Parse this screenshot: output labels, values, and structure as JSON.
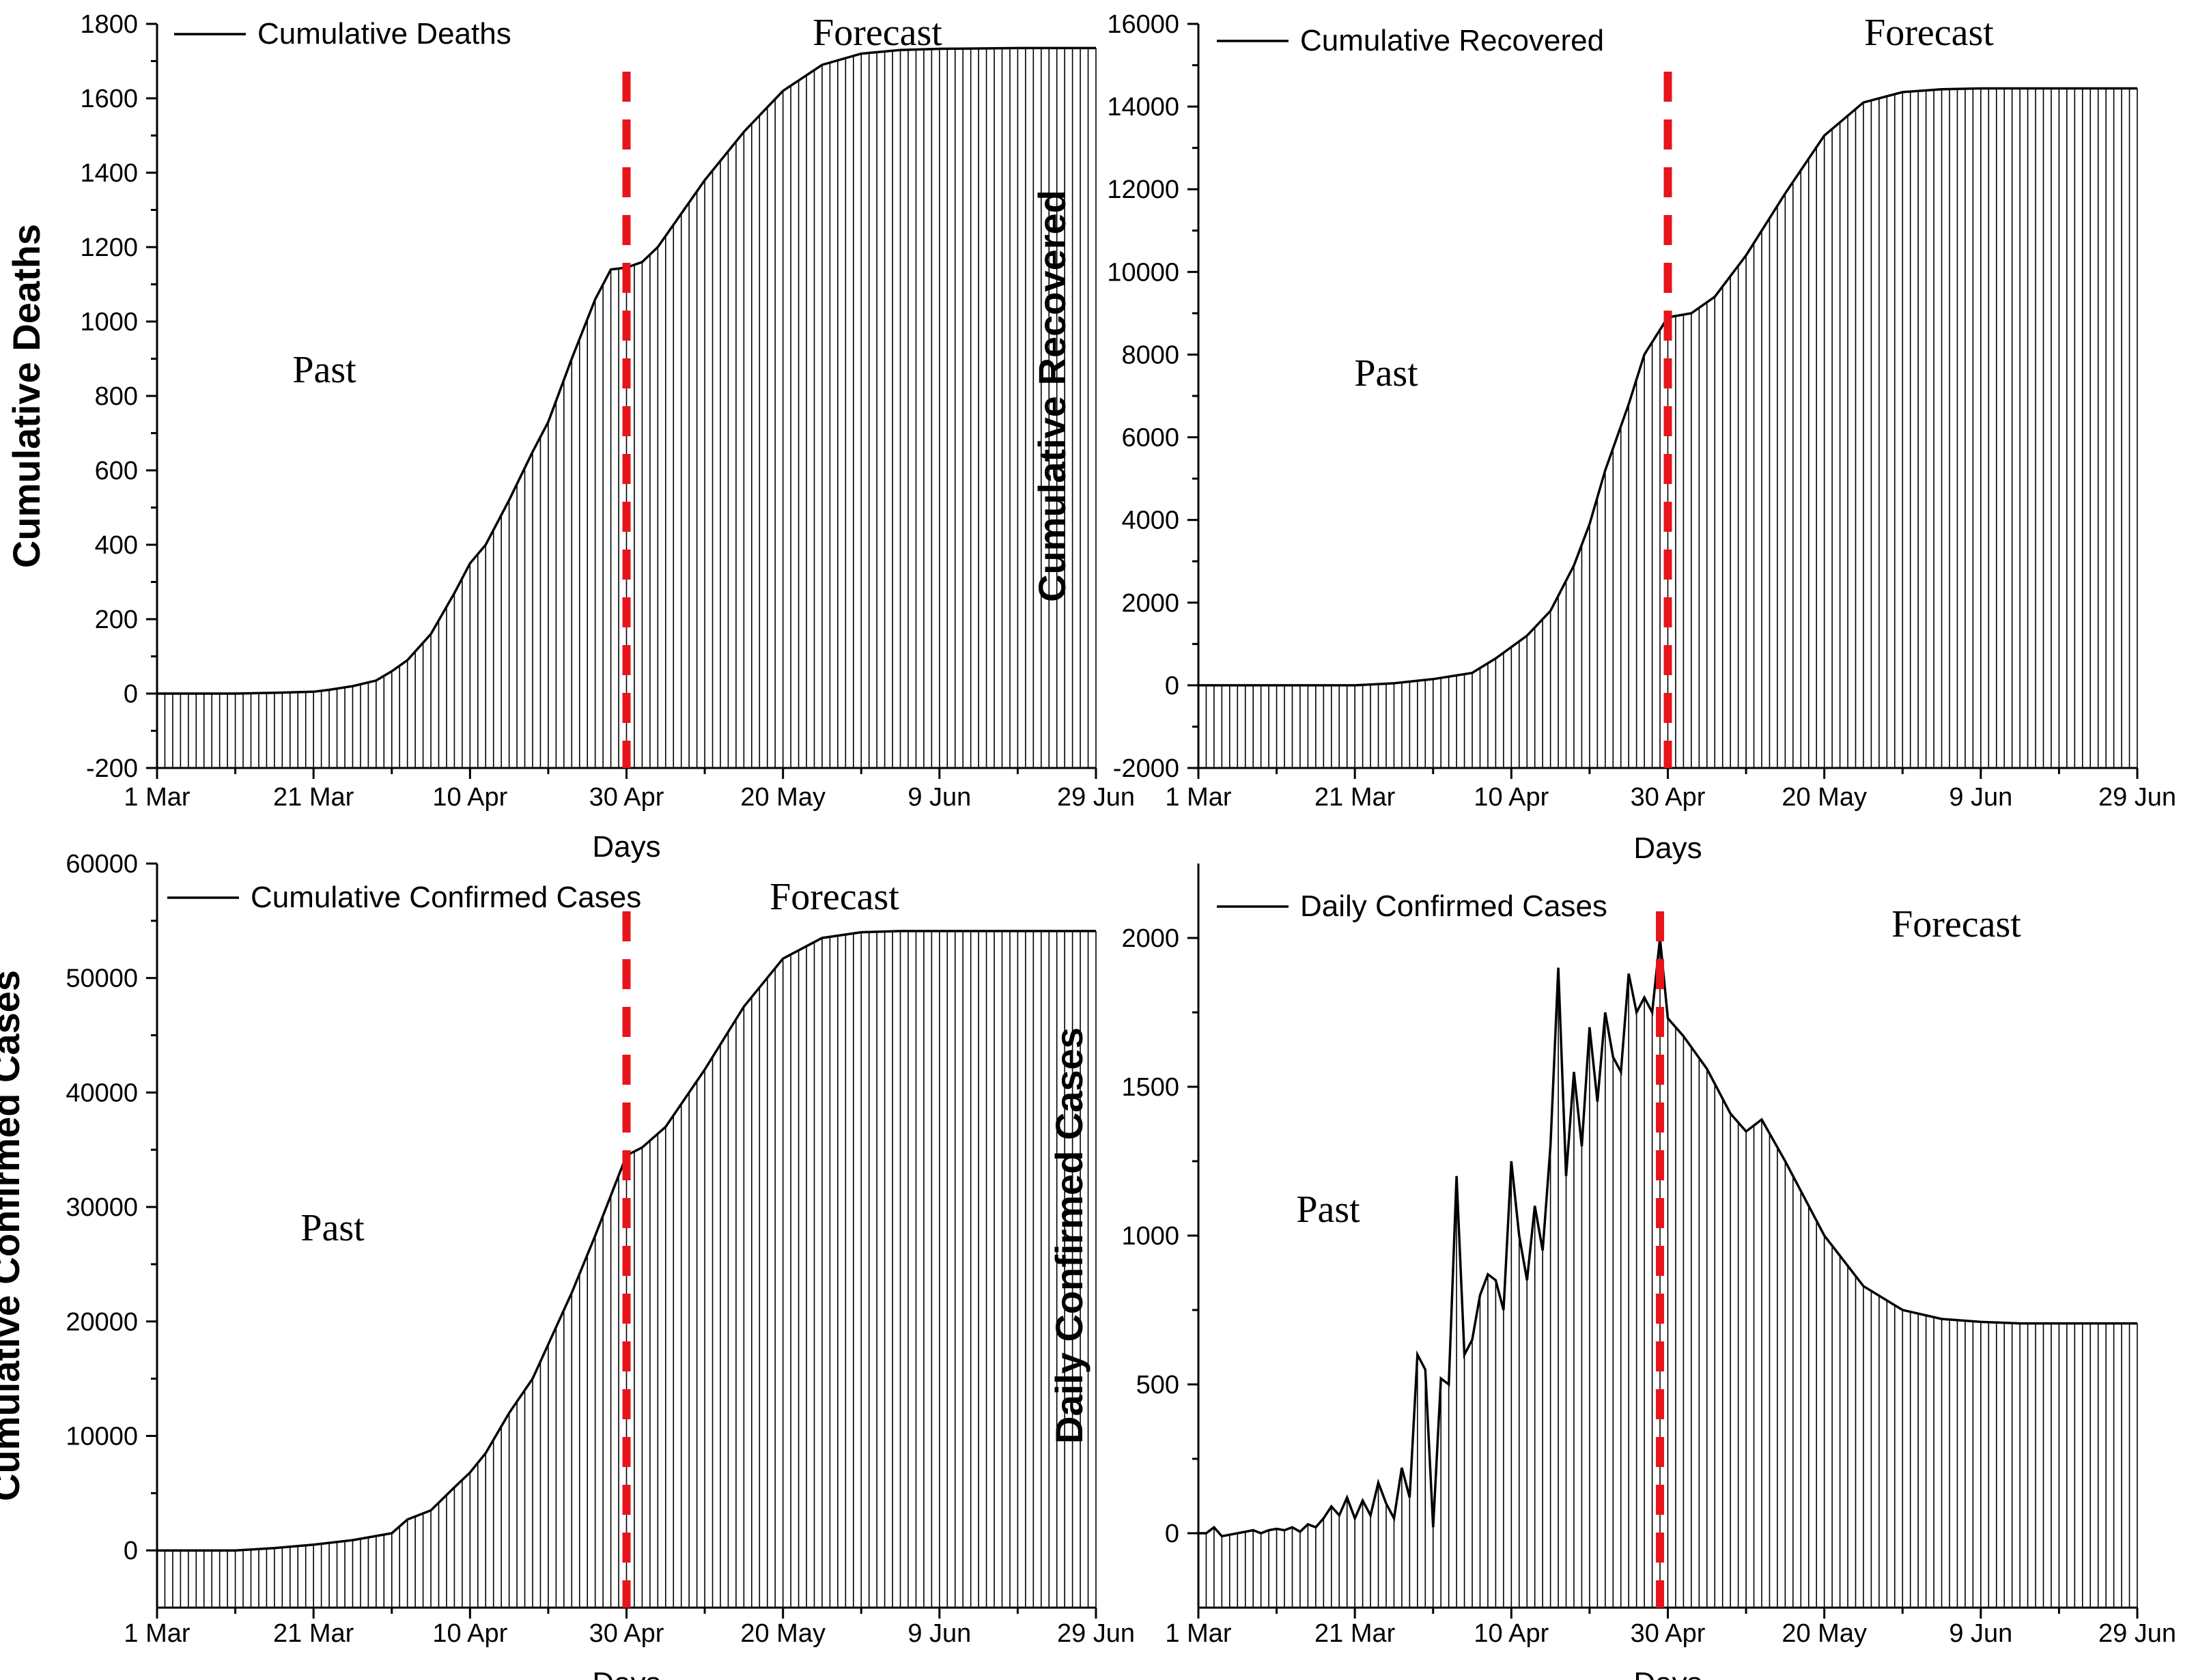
{
  "figure": {
    "x_label": "Days",
    "x_ticks": [
      "1 Mar",
      "21 Mar",
      "10 Apr",
      "30 Apr",
      "20 May",
      "9 Jun",
      "29 Jun"
    ],
    "divider_color": "#e8141b",
    "line_color": "#000000"
  },
  "chart_data": [
    {
      "type": "area",
      "legend": "Cumulative Deaths",
      "ylabel": "Cumulative Deaths",
      "xlabel": "Days",
      "ylim": [
        -200,
        1800
      ],
      "yticks": [
        -200,
        0,
        200,
        400,
        600,
        800,
        1000,
        1200,
        1400,
        1600,
        1800
      ],
      "x_range_days": [
        0,
        120
      ],
      "divider_day": 60,
      "annotations": [
        "Past",
        "Forecast"
      ],
      "series": [
        {
          "x": [
            0,
            10,
            15,
            20,
            22,
            25,
            28,
            30,
            32,
            35,
            38,
            40,
            42,
            45,
            48,
            50,
            53,
            56,
            58,
            60,
            62,
            64,
            66,
            70,
            75,
            80,
            85,
            90,
            95,
            100,
            105,
            110,
            120
          ],
          "y": [
            0,
            0,
            2,
            5,
            10,
            20,
            35,
            60,
            90,
            160,
            270,
            350,
            400,
            520,
            650,
            730,
            900,
            1060,
            1140,
            1145,
            1160,
            1200,
            1260,
            1380,
            1510,
            1620,
            1690,
            1720,
            1730,
            1733,
            1734,
            1735,
            1735
          ]
        }
      ]
    },
    {
      "type": "area",
      "legend": "Cumulative Recovered",
      "ylabel": "Cumulative Recovered",
      "xlabel": "Days",
      "ylim": [
        -2000,
        16000
      ],
      "yticks": [
        -2000,
        0,
        2000,
        4000,
        6000,
        8000,
        10000,
        12000,
        14000,
        16000
      ],
      "x_range_days": [
        0,
        120
      ],
      "divider_day": 60,
      "annotations": [
        "Past",
        "Forecast"
      ],
      "series": [
        {
          "x": [
            0,
            10,
            20,
            25,
            30,
            35,
            38,
            42,
            45,
            48,
            50,
            52,
            55,
            57,
            60,
            63,
            66,
            70,
            75,
            80,
            85,
            90,
            95,
            100,
            105,
            110,
            120
          ],
          "y": [
            0,
            0,
            0,
            50,
            150,
            300,
            650,
            1200,
            1800,
            2900,
            3900,
            5200,
            6800,
            8000,
            8900,
            9000,
            9400,
            10400,
            11900,
            13300,
            14100,
            14350,
            14420,
            14440,
            14440,
            14440,
            14440
          ]
        }
      ]
    },
    {
      "type": "area",
      "legend": "Cumulative Confirmed Cases",
      "ylabel": "Cumulative Confirmed Cases",
      "xlabel": "Days",
      "ylim": [
        -5000,
        60000
      ],
      "yticks": [
        0,
        10000,
        20000,
        30000,
        40000,
        50000,
        60000
      ],
      "x_range_days": [
        0,
        120
      ],
      "divider_day": 60,
      "annotations": [
        "Past",
        "Forecast"
      ],
      "series": [
        {
          "x": [
            0,
            10,
            15,
            20,
            25,
            30,
            32,
            35,
            38,
            40,
            42,
            45,
            48,
            50,
            53,
            56,
            58,
            60,
            62,
            65,
            70,
            75,
            80,
            85,
            90,
            95,
            100,
            105,
            110,
            120
          ],
          "y": [
            0,
            0,
            200,
            500,
            900,
            1500,
            2700,
            3500,
            5500,
            6800,
            8500,
            12000,
            15000,
            18000,
            22500,
            27500,
            31000,
            34500,
            35200,
            37000,
            42000,
            47500,
            51700,
            53500,
            54000,
            54100,
            54100,
            54100,
            54100,
            54100
          ]
        }
      ]
    },
    {
      "type": "area",
      "legend": "Daily Confirmed Cases",
      "ylabel": "Daily Confirmed Cases",
      "xlabel": "Days",
      "ylim": [
        -250,
        2250
      ],
      "yticks": [
        0,
        500,
        1000,
        1500,
        2000
      ],
      "x_range_days": [
        0,
        120
      ],
      "divider_day": 59,
      "annotations": [
        "Past",
        "Forecast"
      ],
      "series": [
        {
          "x": [
            0,
            1,
            2,
            3,
            4,
            5,
            6,
            7,
            8,
            9,
            10,
            11,
            12,
            13,
            14,
            15,
            16,
            17,
            18,
            19,
            20,
            21,
            22,
            23,
            24,
            25,
            26,
            27,
            28,
            29,
            30,
            31,
            32,
            33,
            34,
            35,
            36,
            37,
            38,
            39,
            40,
            41,
            42,
            43,
            44,
            45,
            46,
            47,
            48,
            49,
            50,
            51,
            52,
            53,
            54,
            55,
            56,
            57,
            58,
            59,
            60,
            62,
            65,
            68,
            70,
            72,
            75,
            80,
            85,
            90,
            95,
            100,
            105,
            110,
            120
          ],
          "y": [
            0,
            0,
            20,
            -10,
            -5,
            0,
            5,
            10,
            0,
            10,
            15,
            10,
            20,
            5,
            30,
            20,
            50,
            90,
            60,
            120,
            50,
            110,
            60,
            170,
            100,
            50,
            220,
            120,
            600,
            550,
            20,
            520,
            500,
            1200,
            600,
            650,
            800,
            870,
            850,
            750,
            1250,
            1000,
            850,
            1100,
            950,
            1300,
            1900,
            1200,
            1550,
            1300,
            1700,
            1450,
            1750,
            1600,
            1550,
            1880,
            1750,
            1800,
            1750,
            2000,
            1730,
            1670,
            1560,
            1410,
            1350,
            1390,
            1250,
            1000,
            830,
            750,
            720,
            710,
            705,
            705,
            705
          ]
        }
      ]
    }
  ]
}
